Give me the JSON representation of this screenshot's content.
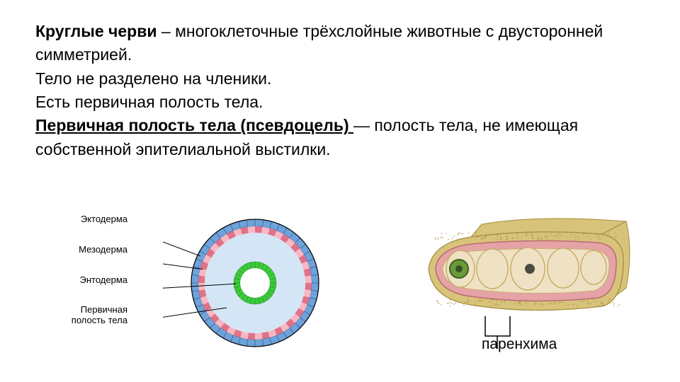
{
  "text": {
    "title_bold": "Круглые черви",
    "title_rest": " – многоклеточные трёхслойные животные с двусторонней симметрией.",
    "line2": "Тело не разделено на членики.",
    "line3": "Есть первичная полость тела.",
    "def_bold": "Первичная полость тела (псевдоцель) ",
    "def_rest": "— полость тела, не имеющая собственной эпителиальной выстилки."
  },
  "circle_labels": {
    "ectoderm": "Эктодерма",
    "mesoderm": "Мезодерма",
    "endoderm": "Энтодерма",
    "cavity": "Первичная\nполость тела"
  },
  "circle_style": {
    "ectoderm_color": "#6ea2d8",
    "ectoderm_dark": "#2a5a9a",
    "mesoderm_light": "#f7b7c3",
    "mesoderm_dark": "#e07288",
    "endoderm_color": "#3dc93d",
    "endoderm_dark": "#1a8f1a",
    "cavity_fill": "#d4e6f5",
    "inner_fill": "#ffffff",
    "outline": "#000000",
    "label_font": 13,
    "leader_color": "#000000",
    "outer_r": 90,
    "meso_outer_r": 80,
    "meso_inner_r": 71,
    "endo_outer_r": 30,
    "endo_inner_r": 21,
    "segment_count": 48
  },
  "tissue": {
    "label": "паренхима",
    "outer_color": "#d8c37a",
    "outer_dots": "#a38c3e",
    "mid_color": "#e5a3a6",
    "mid_stroke": "#b86b70",
    "inner_fill": "#efe1c3",
    "cell_fill": "#efe1c3",
    "cell_stroke": "#c2a860",
    "green_circle": "#6a9a3a",
    "dark_circle": "#4a4a40",
    "bracket_color": "#000000"
  }
}
